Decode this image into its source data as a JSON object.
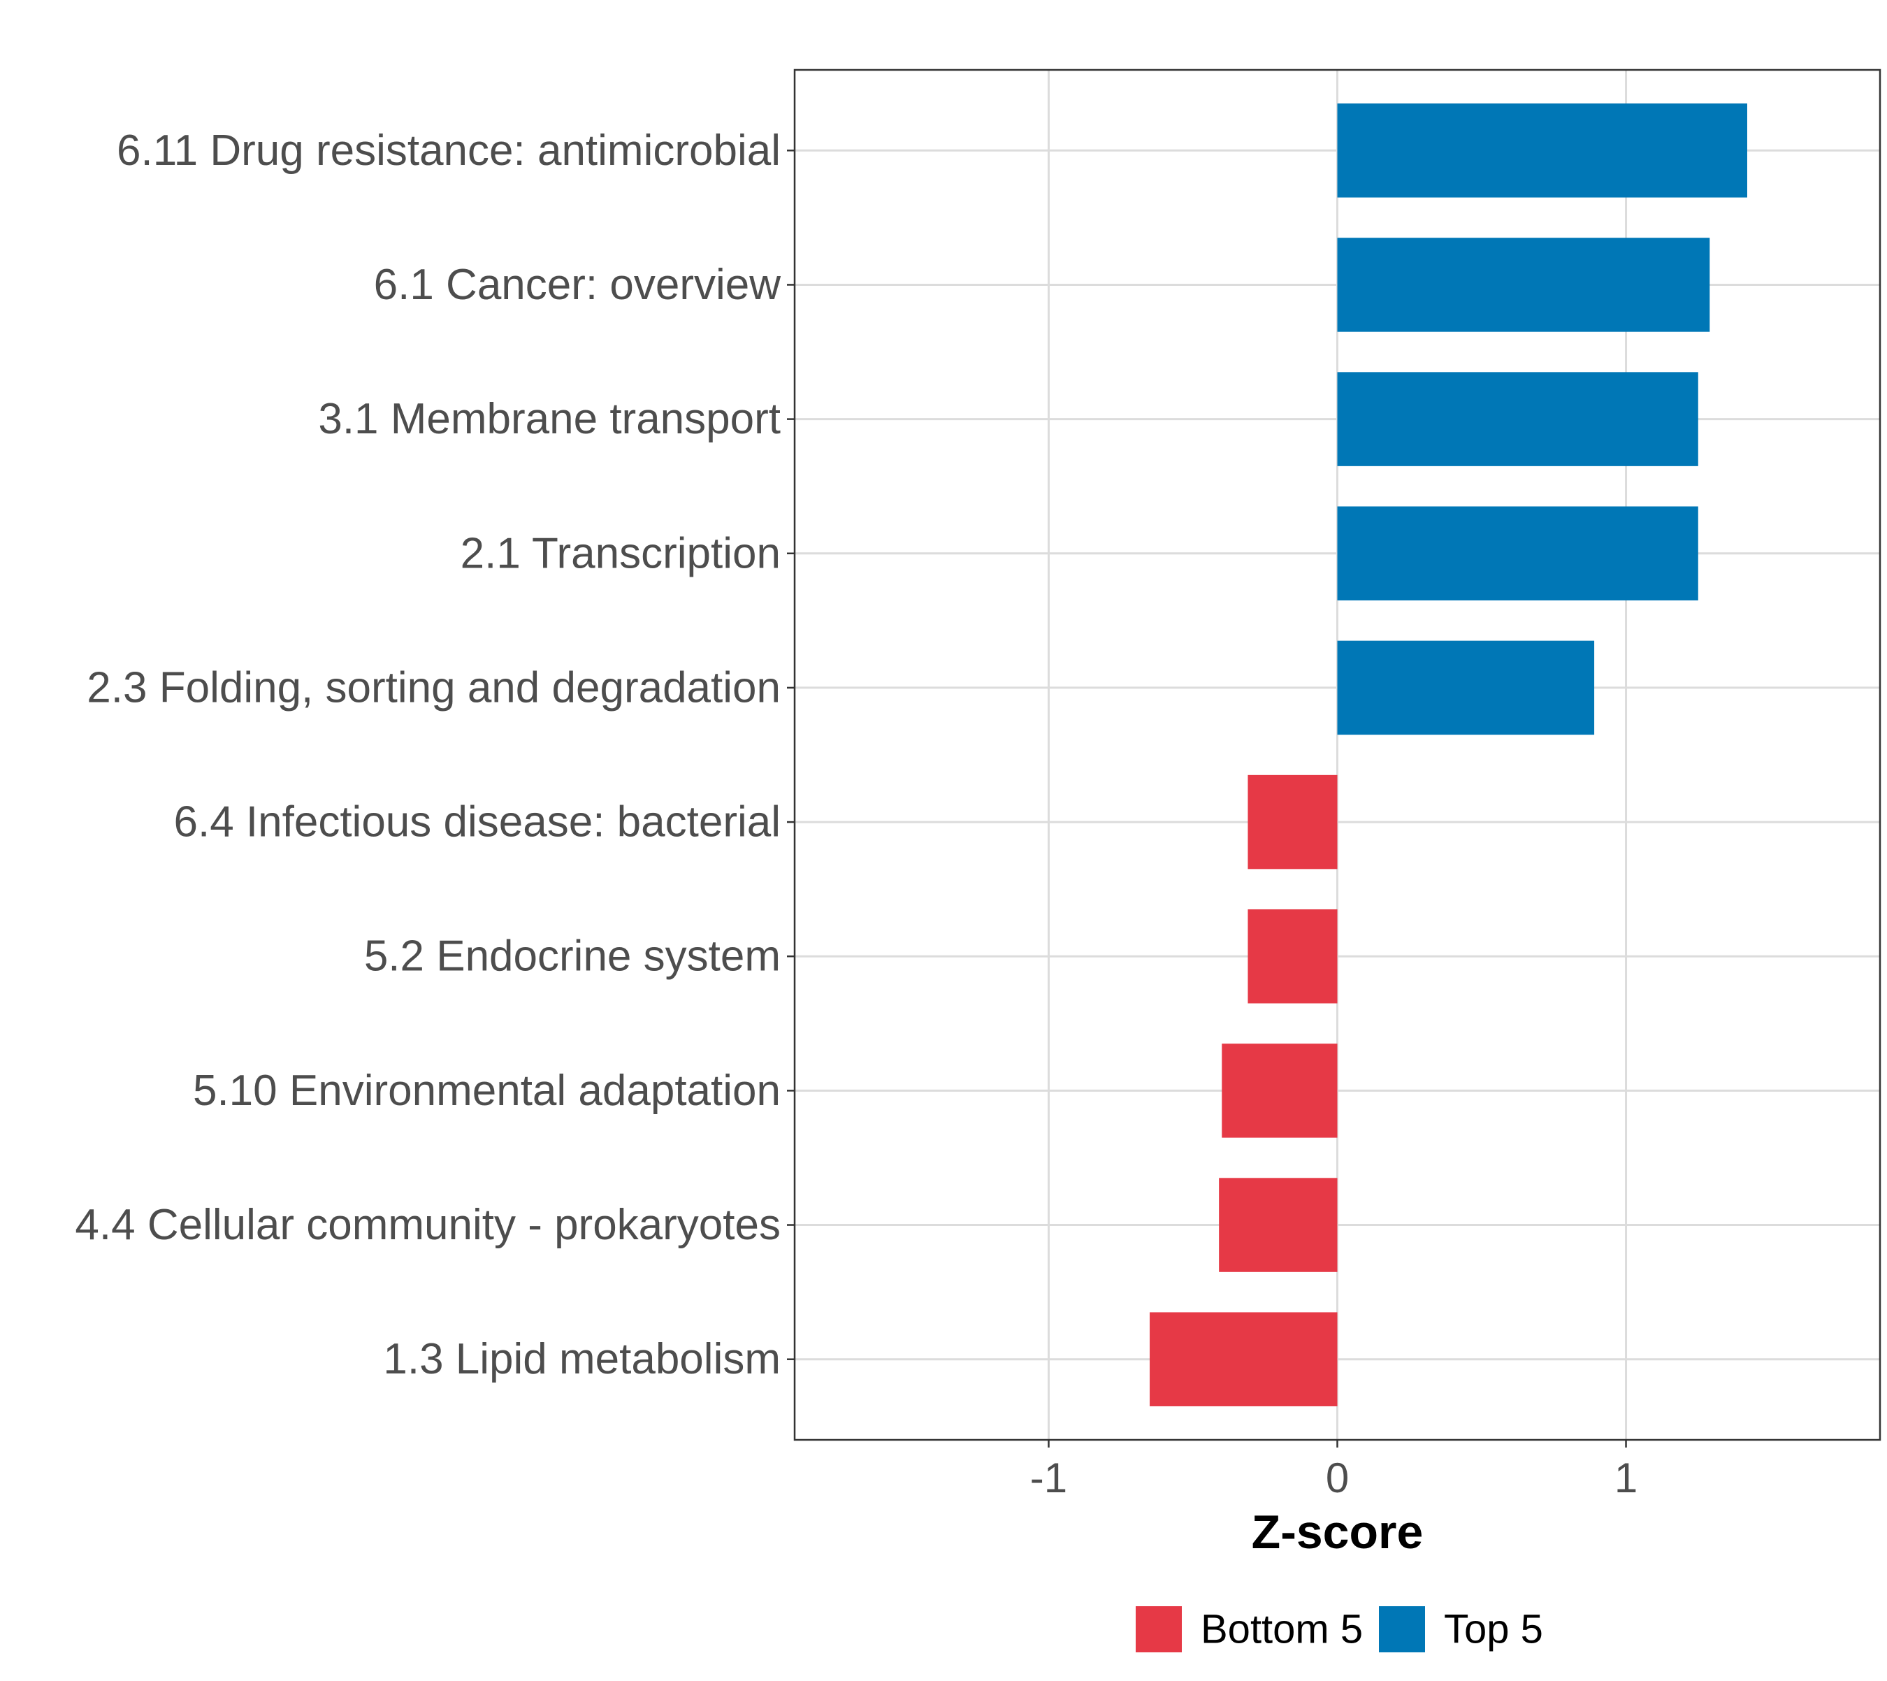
{
  "chart_data": {
    "type": "bar",
    "orientation": "horizontal",
    "categories": [
      "6.11 Drug resistance: antimicrobial",
      "6.1 Cancer: overview",
      "3.1 Membrane transport",
      "2.1 Transcription",
      "2.3 Folding, sorting and degradation",
      "6.4 Infectious disease: bacterial",
      "5.2 Endocrine system",
      "5.10 Environmental adaptation",
      "4.4 Cellular community - prokaryotes",
      "1.3 Lipid metabolism"
    ],
    "values": [
      1.42,
      1.29,
      1.25,
      1.25,
      0.89,
      -0.31,
      -0.31,
      -0.4,
      -0.41,
      -0.65
    ],
    "groups": [
      "Top 5",
      "Top 5",
      "Top 5",
      "Top 5",
      "Top 5",
      "Bottom 5",
      "Bottom 5",
      "Bottom 5",
      "Bottom 5",
      "Bottom 5"
    ],
    "xlabel": "Z-score",
    "xlim": [
      -1.88,
      1.88
    ],
    "xticks": [
      -1,
      0,
      1
    ],
    "xtick_labels": [
      "-1",
      "0",
      "1"
    ],
    "grid": true,
    "legend": {
      "position": "bottom",
      "entries": [
        {
          "label": "Bottom 5",
          "color": "#e63946"
        },
        {
          "label": "Top 5",
          "color": "#0077b6"
        }
      ]
    },
    "colors": {
      "Top 5": "#0077b6",
      "Bottom 5": "#e63946"
    }
  }
}
